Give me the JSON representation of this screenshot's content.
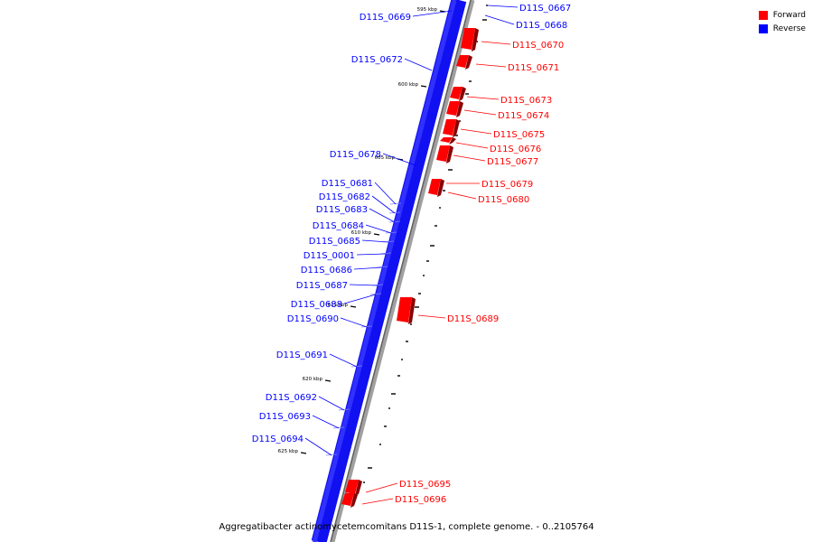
{
  "legend": [
    {
      "label": "Forward",
      "color": "#ff0000"
    },
    {
      "label": "Reverse",
      "color": "#0000ff"
    }
  ],
  "caption": "Aggregatibacter actinomycetemcomitans D11S-1, complete genome. - 0..2105764",
  "scale_marks": [
    {
      "kbp": 595,
      "label": "595 kbp"
    },
    {
      "kbp": 600,
      "label": "600 kbp"
    },
    {
      "kbp": 605,
      "label": "605 kbp"
    },
    {
      "kbp": 610,
      "label": "610 kbp"
    },
    {
      "kbp": 615,
      "label": "615 kbp"
    },
    {
      "kbp": 620,
      "label": "620 kbp"
    },
    {
      "kbp": 625,
      "label": "625 kbp"
    }
  ],
  "genes": [
    {
      "name": "D11S_0667",
      "strand": "reverse"
    },
    {
      "name": "D11S_0668",
      "strand": "reverse"
    },
    {
      "name": "D11S_0669",
      "strand": "reverse"
    },
    {
      "name": "D11S_0670",
      "strand": "forward"
    },
    {
      "name": "D11S_0671",
      "strand": "forward"
    },
    {
      "name": "D11S_0672",
      "strand": "reverse"
    },
    {
      "name": "D11S_0673",
      "strand": "forward"
    },
    {
      "name": "D11S_0674",
      "strand": "forward"
    },
    {
      "name": "D11S_0675",
      "strand": "forward"
    },
    {
      "name": "D11S_0676",
      "strand": "forward"
    },
    {
      "name": "D11S_0677",
      "strand": "forward"
    },
    {
      "name": "D11S_0678",
      "strand": "reverse"
    },
    {
      "name": "D11S_0679",
      "strand": "forward"
    },
    {
      "name": "D11S_0680",
      "strand": "forward"
    },
    {
      "name": "D11S_0681",
      "strand": "reverse"
    },
    {
      "name": "D11S_0682",
      "strand": "reverse"
    },
    {
      "name": "D11S_0683",
      "strand": "reverse"
    },
    {
      "name": "D11S_0684",
      "strand": "reverse"
    },
    {
      "name": "D11S_0685",
      "strand": "reverse"
    },
    {
      "name": "D11S_0001",
      "strand": "reverse"
    },
    {
      "name": "D11S_0686",
      "strand": "reverse"
    },
    {
      "name": "D11S_0687",
      "strand": "reverse"
    },
    {
      "name": "D11S_0688",
      "strand": "reverse"
    },
    {
      "name": "D11S_0689",
      "strand": "forward"
    },
    {
      "name": "D11S_0690",
      "strand": "reverse"
    },
    {
      "name": "D11S_0691",
      "strand": "reverse"
    },
    {
      "name": "D11S_0692",
      "strand": "reverse"
    },
    {
      "name": "D11S_0693",
      "strand": "reverse"
    },
    {
      "name": "D11S_0694",
      "strand": "reverse"
    },
    {
      "name": "D11S_0695",
      "strand": "forward"
    },
    {
      "name": "D11S_0696",
      "strand": "forward"
    }
  ]
}
